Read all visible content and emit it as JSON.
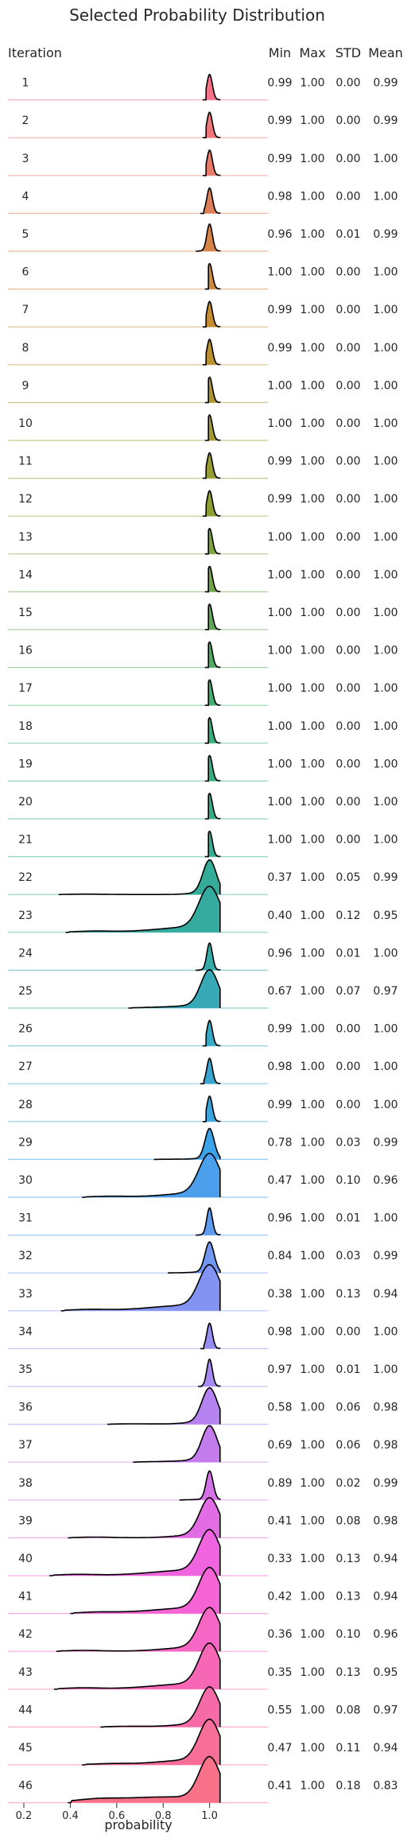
{
  "chart_data": {
    "type": "ridgeline",
    "title": "Selected Probability Distribution",
    "xlabel": "probability",
    "ylabel": "Iteration",
    "xlim": [
      0.2,
      1.08
    ],
    "xticks": [
      0.2,
      0.4,
      0.6,
      0.8,
      1.0
    ],
    "xtick_labels": [
      "0.2",
      "0.4",
      "0.6",
      "0.8",
      "1.0"
    ],
    "grid": false,
    "legend": "none",
    "stat_headers": [
      "Min",
      "Max",
      "STD",
      "Mean"
    ],
    "color_scale": [
      "#f77189",
      "#c98c31",
      "#88a131",
      "#33b07a",
      "#35aaa3",
      "#3ba3ec",
      "#a48cf4",
      "#f561dd",
      "#f77189"
    ],
    "rows": [
      {
        "iteration": "1",
        "min": "0.99",
        "max": "1.00",
        "std": "0.00",
        "mean": "0.99"
      },
      {
        "iteration": "2",
        "min": "0.99",
        "max": "1.00",
        "std": "0.00",
        "mean": "0.99"
      },
      {
        "iteration": "3",
        "min": "0.99",
        "max": "1.00",
        "std": "0.00",
        "mean": "1.00"
      },
      {
        "iteration": "4",
        "min": "0.98",
        "max": "1.00",
        "std": "0.00",
        "mean": "1.00"
      },
      {
        "iteration": "5",
        "min": "0.96",
        "max": "1.00",
        "std": "0.01",
        "mean": "0.99"
      },
      {
        "iteration": "6",
        "min": "1.00",
        "max": "1.00",
        "std": "0.00",
        "mean": "1.00"
      },
      {
        "iteration": "7",
        "min": "0.99",
        "max": "1.00",
        "std": "0.00",
        "mean": "1.00"
      },
      {
        "iteration": "8",
        "min": "0.99",
        "max": "1.00",
        "std": "0.00",
        "mean": "1.00"
      },
      {
        "iteration": "9",
        "min": "1.00",
        "max": "1.00",
        "std": "0.00",
        "mean": "1.00"
      },
      {
        "iteration": "10",
        "min": "1.00",
        "max": "1.00",
        "std": "0.00",
        "mean": "1.00"
      },
      {
        "iteration": "11",
        "min": "0.99",
        "max": "1.00",
        "std": "0.00",
        "mean": "1.00"
      },
      {
        "iteration": "12",
        "min": "0.99",
        "max": "1.00",
        "std": "0.00",
        "mean": "1.00"
      },
      {
        "iteration": "13",
        "min": "1.00",
        "max": "1.00",
        "std": "0.00",
        "mean": "1.00"
      },
      {
        "iteration": "14",
        "min": "1.00",
        "max": "1.00",
        "std": "0.00",
        "mean": "1.00"
      },
      {
        "iteration": "15",
        "min": "1.00",
        "max": "1.00",
        "std": "0.00",
        "mean": "1.00"
      },
      {
        "iteration": "16",
        "min": "1.00",
        "max": "1.00",
        "std": "0.00",
        "mean": "1.00"
      },
      {
        "iteration": "17",
        "min": "1.00",
        "max": "1.00",
        "std": "0.00",
        "mean": "1.00"
      },
      {
        "iteration": "18",
        "min": "1.00",
        "max": "1.00",
        "std": "0.00",
        "mean": "1.00"
      },
      {
        "iteration": "19",
        "min": "1.00",
        "max": "1.00",
        "std": "0.00",
        "mean": "1.00"
      },
      {
        "iteration": "20",
        "min": "1.00",
        "max": "1.00",
        "std": "0.00",
        "mean": "1.00"
      },
      {
        "iteration": "21",
        "min": "1.00",
        "max": "1.00",
        "std": "0.00",
        "mean": "1.00"
      },
      {
        "iteration": "22",
        "min": "0.37",
        "max": "1.00",
        "std": "0.05",
        "mean": "0.99"
      },
      {
        "iteration": "23",
        "min": "0.40",
        "max": "1.00",
        "std": "0.12",
        "mean": "0.95"
      },
      {
        "iteration": "24",
        "min": "0.96",
        "max": "1.00",
        "std": "0.01",
        "mean": "1.00"
      },
      {
        "iteration": "25",
        "min": "0.67",
        "max": "1.00",
        "std": "0.07",
        "mean": "0.97"
      },
      {
        "iteration": "26",
        "min": "0.99",
        "max": "1.00",
        "std": "0.00",
        "mean": "1.00"
      },
      {
        "iteration": "27",
        "min": "0.98",
        "max": "1.00",
        "std": "0.00",
        "mean": "1.00"
      },
      {
        "iteration": "28",
        "min": "0.99",
        "max": "1.00",
        "std": "0.00",
        "mean": "1.00"
      },
      {
        "iteration": "29",
        "min": "0.78",
        "max": "1.00",
        "std": "0.03",
        "mean": "0.99"
      },
      {
        "iteration": "30",
        "min": "0.47",
        "max": "1.00",
        "std": "0.10",
        "mean": "0.96"
      },
      {
        "iteration": "31",
        "min": "0.96",
        "max": "1.00",
        "std": "0.01",
        "mean": "1.00"
      },
      {
        "iteration": "32",
        "min": "0.84",
        "max": "1.00",
        "std": "0.03",
        "mean": "0.99"
      },
      {
        "iteration": "33",
        "min": "0.38",
        "max": "1.00",
        "std": "0.13",
        "mean": "0.94"
      },
      {
        "iteration": "34",
        "min": "0.98",
        "max": "1.00",
        "std": "0.00",
        "mean": "1.00"
      },
      {
        "iteration": "35",
        "min": "0.97",
        "max": "1.00",
        "std": "0.01",
        "mean": "1.00"
      },
      {
        "iteration": "36",
        "min": "0.58",
        "max": "1.00",
        "std": "0.06",
        "mean": "0.98"
      },
      {
        "iteration": "37",
        "min": "0.69",
        "max": "1.00",
        "std": "0.06",
        "mean": "0.98"
      },
      {
        "iteration": "38",
        "min": "0.89",
        "max": "1.00",
        "std": "0.02",
        "mean": "0.99"
      },
      {
        "iteration": "39",
        "min": "0.41",
        "max": "1.00",
        "std": "0.08",
        "mean": "0.98"
      },
      {
        "iteration": "40",
        "min": "0.33",
        "max": "1.00",
        "std": "0.13",
        "mean": "0.94"
      },
      {
        "iteration": "41",
        "min": "0.42",
        "max": "1.00",
        "std": "0.13",
        "mean": "0.94"
      },
      {
        "iteration": "42",
        "min": "0.36",
        "max": "1.00",
        "std": "0.10",
        "mean": "0.96"
      },
      {
        "iteration": "43",
        "min": "0.35",
        "max": "1.00",
        "std": "0.13",
        "mean": "0.95"
      },
      {
        "iteration": "44",
        "min": "0.55",
        "max": "1.00",
        "std": "0.08",
        "mean": "0.97"
      },
      {
        "iteration": "45",
        "min": "0.47",
        "max": "1.00",
        "std": "0.11",
        "mean": "0.94"
      },
      {
        "iteration": "46",
        "min": "0.41",
        "max": "1.00",
        "std": "0.18",
        "mean": "0.83"
      }
    ]
  }
}
